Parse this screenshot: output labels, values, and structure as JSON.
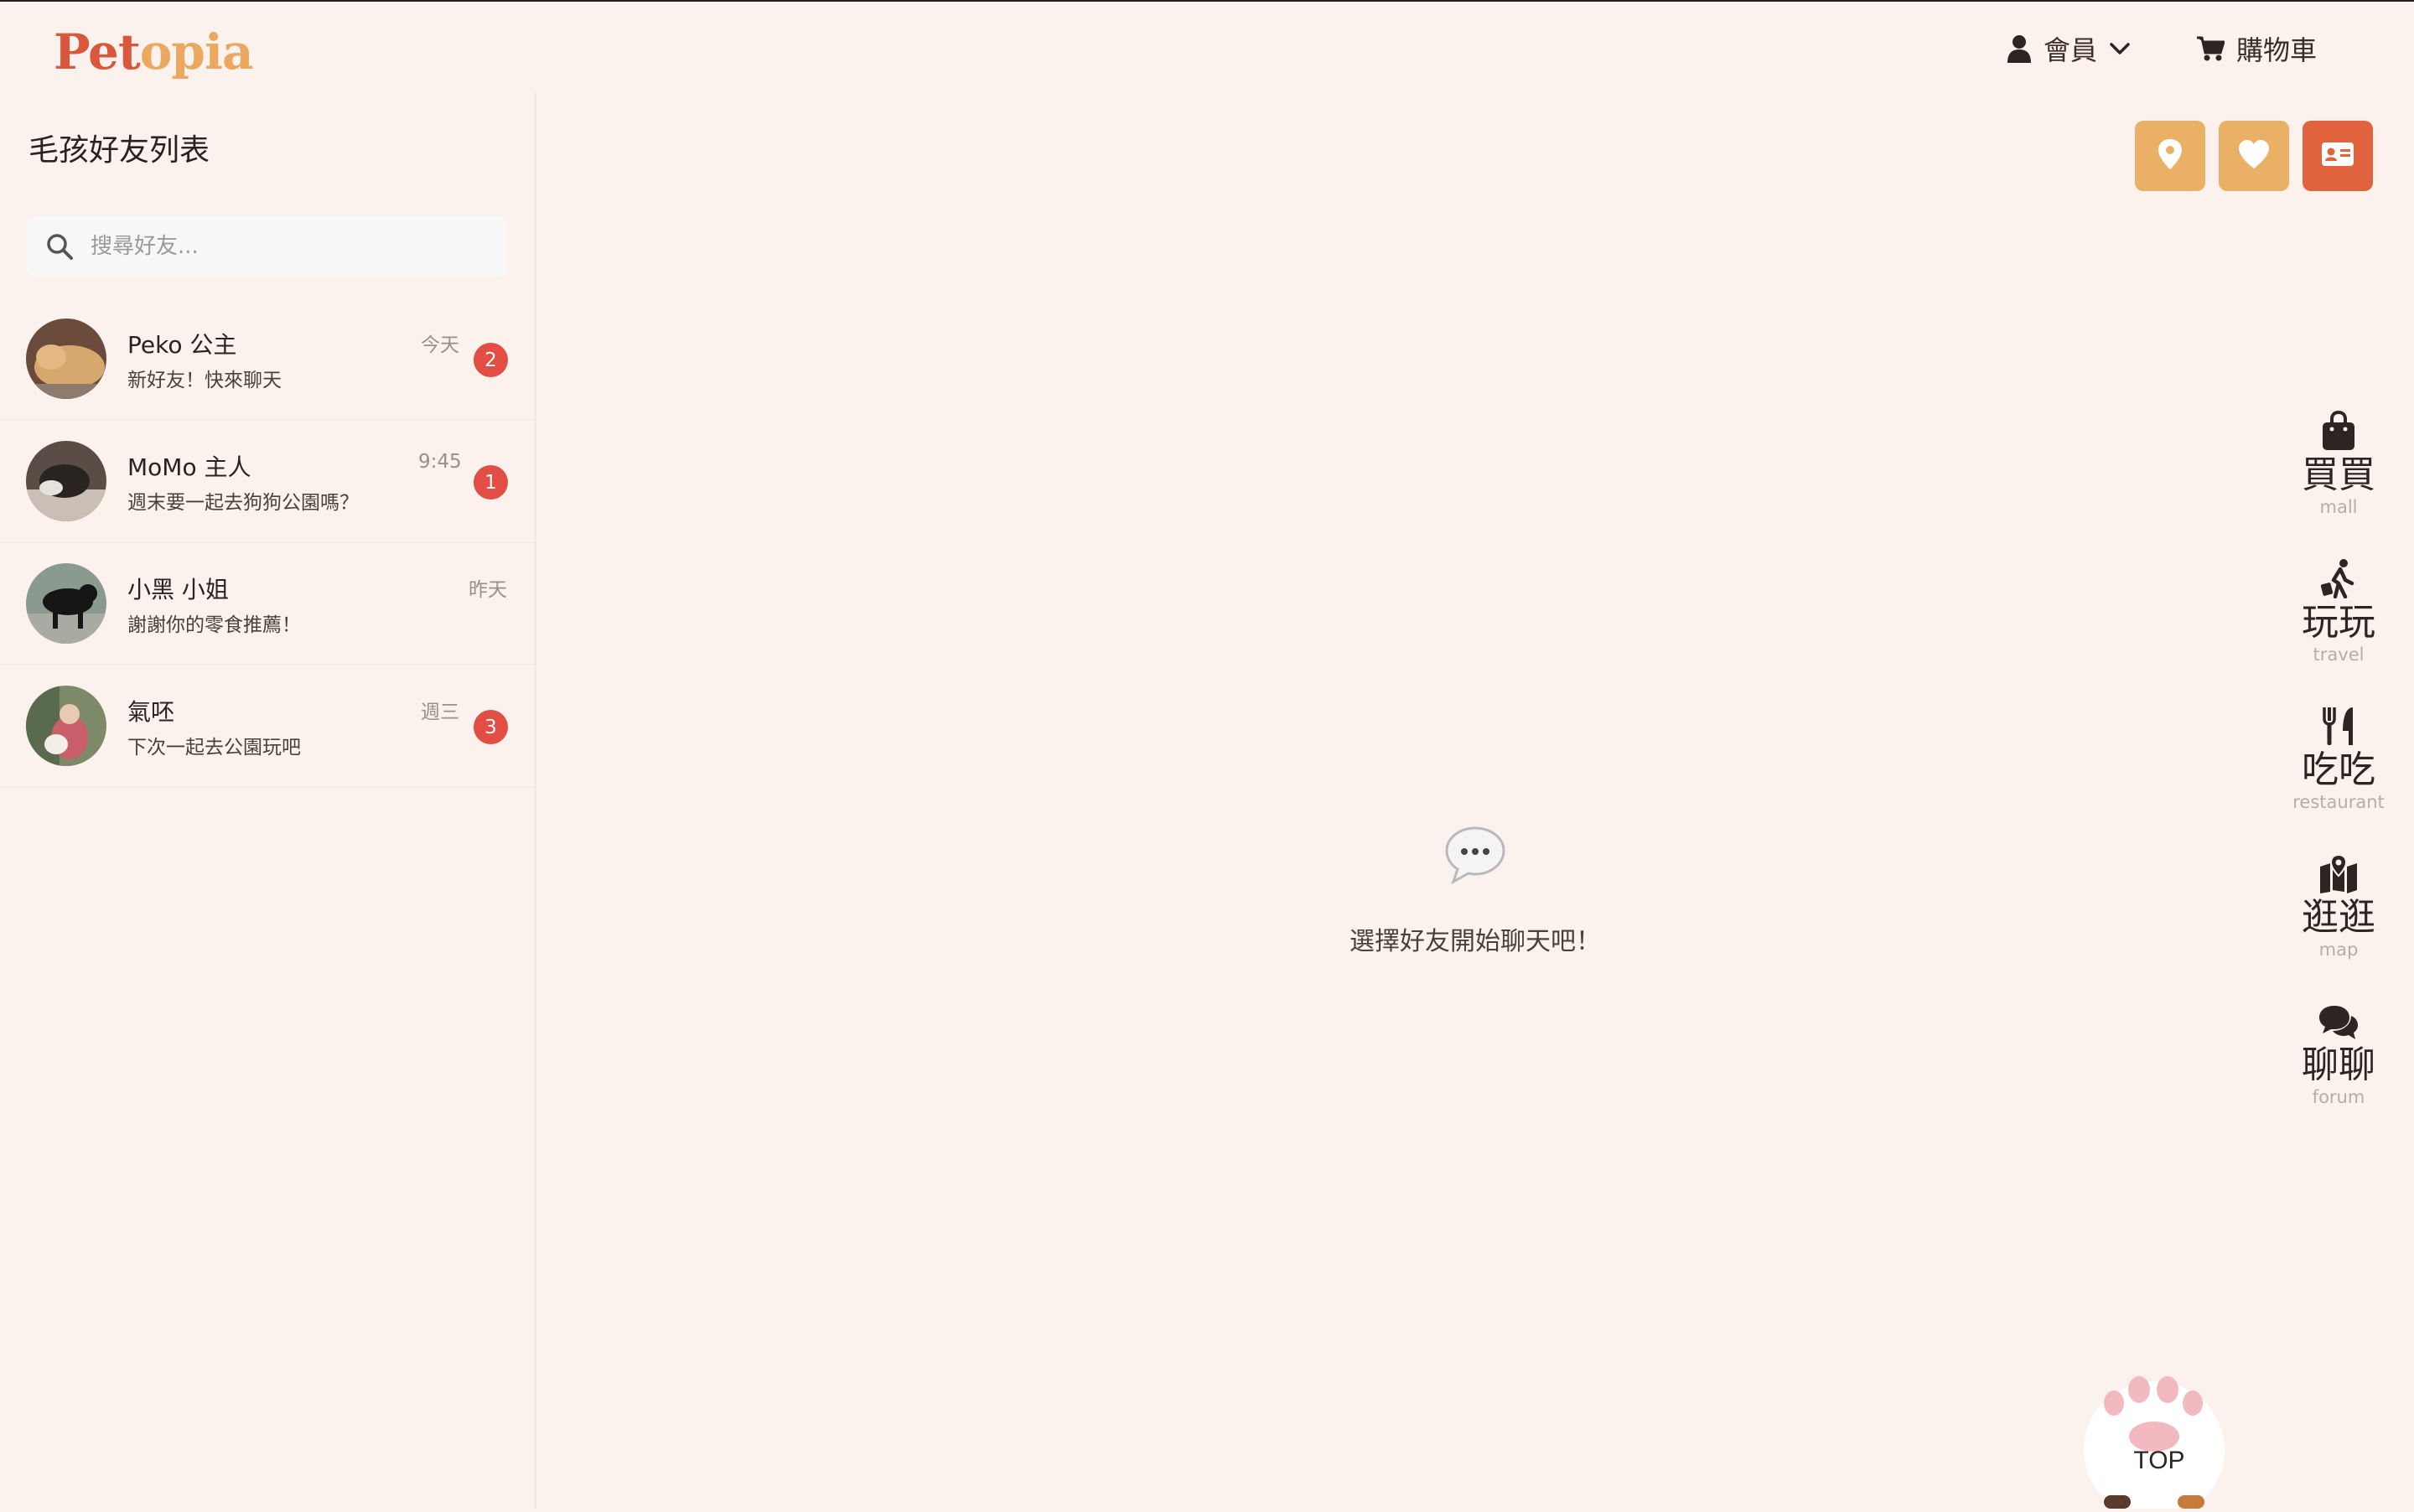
{
  "header": {
    "logo_part1": "Pet",
    "logo_part2": "opia",
    "member_label": "會員",
    "cart_label": "購物車"
  },
  "sidebar": {
    "title": "毛孩好友列表",
    "search": {
      "placeholder": "搜尋好友...",
      "value": ""
    },
    "friends": [
      {
        "name": "Peko 公主",
        "message": "新好友！快來聊天",
        "time": "今天",
        "unread": "2"
      },
      {
        "name": "MoMo 主人",
        "message": "週末要一起去狗狗公園嗎？",
        "time": "9:45",
        "unread": "1"
      },
      {
        "name": "小黑 小姐",
        "message": "謝謝你的零食推薦！",
        "time": "昨天",
        "unread": ""
      },
      {
        "name": "氣呸",
        "message": "下次一起去公園玩吧",
        "time": "週三",
        "unread": "3"
      }
    ]
  },
  "main": {
    "empty_text": "選擇好友開始聊天吧！"
  },
  "right_nav": [
    {
      "zh": "買買",
      "en": "mall",
      "icon": "bag-icon"
    },
    {
      "zh": "玩玩",
      "en": "travel",
      "icon": "traveler-icon"
    },
    {
      "zh": "吃吃",
      "en": "restaurant",
      "icon": "utensils-icon"
    },
    {
      "zh": "逛逛",
      "en": "map",
      "icon": "map-icon"
    },
    {
      "zh": "聊聊",
      "en": "forum",
      "icon": "chat-icon"
    }
  ],
  "top_button": {
    "label": "TOP"
  },
  "colors": {
    "background": "#fcf2ed",
    "accent_orange": "#eab066",
    "accent_red": "#e2643f",
    "badge": "#e24d44",
    "logo_red": "#d9583b",
    "logo_orange": "#eaa860"
  }
}
